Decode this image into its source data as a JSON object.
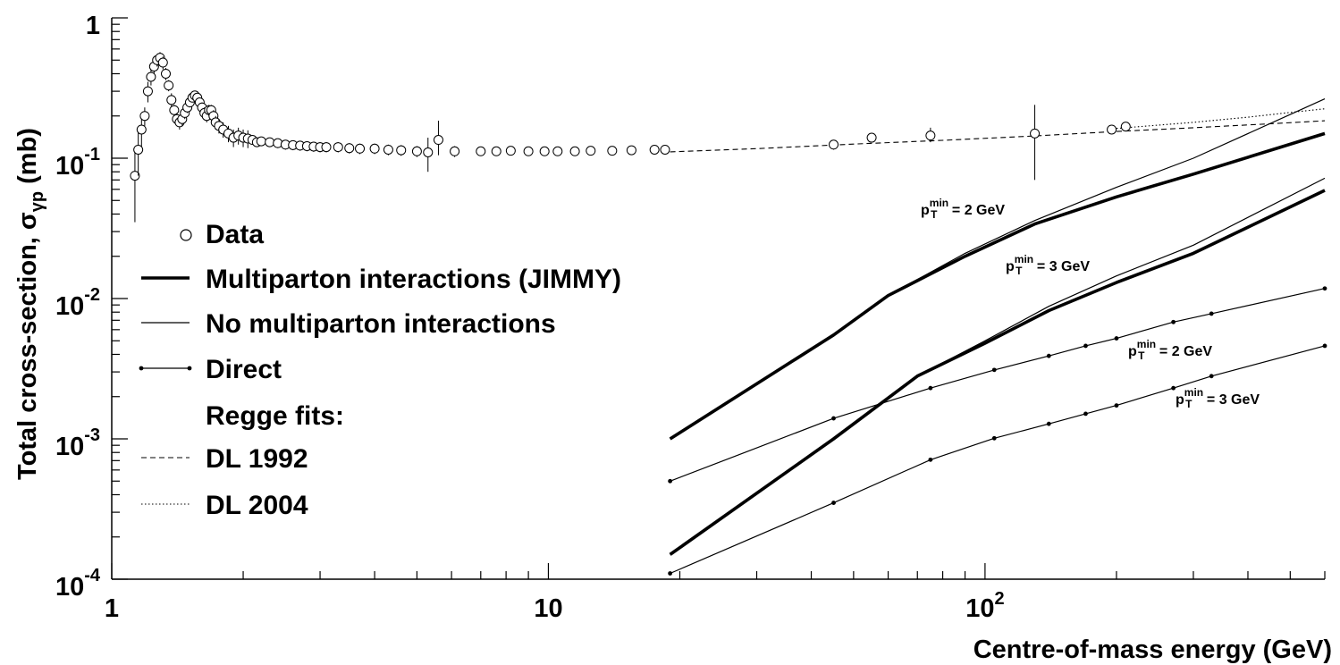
{
  "chart_data": {
    "type": "line",
    "title": "",
    "xlabel": "Centre-of-mass energy (GeV)",
    "ylabel_main": "Total cross-section, σ",
    "ylabel_sub": "γp",
    "ylabel_unit": " (mb)",
    "x_scale": "log",
    "y_scale": "log",
    "xlim": [
      1,
      600
    ],
    "ylim": [
      0.0001,
      1
    ],
    "grid": false,
    "legend_placement": "left",
    "x_ticks": [
      {
        "value": 1,
        "label": "1",
        "sup": ""
      },
      {
        "value": 10,
        "label": "10",
        "sup": ""
      },
      {
        "value": 100,
        "label": "10",
        "sup": "2"
      }
    ],
    "y_ticks": [
      {
        "value": 1,
        "label": "1",
        "sup": ""
      },
      {
        "value": 0.1,
        "label": "10",
        "sup": "-1"
      },
      {
        "value": 0.01,
        "label": "10",
        "sup": "-2"
      },
      {
        "value": 0.001,
        "label": "10",
        "sup": "-3"
      },
      {
        "value": 0.0001,
        "label": "10",
        "sup": "-4"
      }
    ],
    "legend": [
      {
        "key": "data",
        "label": "Data"
      },
      {
        "key": "mpi",
        "label": "Multiparton interactions (JIMMY)"
      },
      {
        "key": "nompi",
        "label": "No multiparton interactions"
      },
      {
        "key": "direct",
        "label": "Direct"
      },
      {
        "key": "header",
        "label": "Regge fits:"
      },
      {
        "key": "dl1992",
        "label": "DL 1992"
      },
      {
        "key": "dl2004",
        "label": "DL 2004"
      }
    ],
    "annotations": [
      {
        "base": "p",
        "sub": "T",
        "sup": "min",
        "rest": " = 2 GeV",
        "x": 20000,
        "y": 0.025
      },
      {
        "base": "p",
        "sub": "T",
        "sup": "min",
        "rest": " = 3 GeV",
        "x": 200000,
        "y": 0.0135
      },
      {
        "base": "p",
        "sub": "T",
        "sup": "min",
        "rest": " = 2 GeV",
        "x": 250000,
        "y": 0.0024
      },
      {
        "base": "p",
        "sub": "T",
        "sup": "min",
        "rest": " = 3 GeV",
        "x": 300000,
        "y": 0.0013
      }
    ],
    "series": [
      {
        "name": "Multiparton interactions (JIMMY)",
        "style": "thick",
        "label": "p_T^min = 2 GeV",
        "x": [
          19,
          45,
          60,
          90,
          130,
          200,
          300,
          600
        ],
        "y": [
          0.001,
          0.0055,
          0.0105,
          0.02,
          0.034,
          0.053,
          0.077,
          0.15
        ]
      },
      {
        "name": "No multiparton interactions",
        "style": "thin",
        "label": "p_T^min = 2 GeV",
        "x": [
          19,
          45,
          60,
          90,
          130,
          200,
          300,
          600
        ],
        "y": [
          0.001,
          0.0055,
          0.0105,
          0.021,
          0.036,
          0.062,
          0.1,
          0.265
        ]
      },
      {
        "name": "Multiparton interactions (JIMMY)",
        "style": "thick",
        "label": "p_T^min = 3 GeV",
        "x": [
          19,
          45,
          70,
          100,
          140,
          200,
          300,
          600
        ],
        "y": [
          0.00015,
          0.001,
          0.0028,
          0.0048,
          0.0082,
          0.013,
          0.021,
          0.059
        ]
      },
      {
        "name": "No multiparton interactions",
        "style": "thin",
        "label": "p_T^min = 3 GeV",
        "x": [
          19,
          45,
          70,
          100,
          140,
          200,
          300,
          600
        ],
        "y": [
          0.00015,
          0.001,
          0.0028,
          0.005,
          0.0088,
          0.0145,
          0.024,
          0.072
        ]
      },
      {
        "name": "Direct",
        "style": "direct",
        "label": "p_T^min = 2 GeV",
        "x": [
          19,
          45,
          75,
          105,
          140,
          170,
          200,
          270,
          330,
          600
        ],
        "y": [
          0.0005,
          0.0014,
          0.0023,
          0.0031,
          0.0039,
          0.0046,
          0.0052,
          0.0068,
          0.0078,
          0.0118
        ]
      },
      {
        "name": "Direct",
        "style": "direct",
        "label": "p_T^min = 3 GeV",
        "x": [
          19,
          45,
          75,
          105,
          140,
          170,
          200,
          270,
          330,
          600
        ],
        "y": [
          0.00011,
          0.00035,
          0.00071,
          0.00101,
          0.00128,
          0.00151,
          0.00173,
          0.0023,
          0.0028,
          0.0046
        ]
      },
      {
        "name": "DL 1992",
        "style": "dashed",
        "x": [
          19,
          30,
          50,
          80,
          130,
          200,
          300,
          450,
          600
        ],
        "y": [
          0.111,
          0.117,
          0.126,
          0.134,
          0.144,
          0.155,
          0.165,
          0.176,
          0.185
        ]
      },
      {
        "name": "DL 2004",
        "style": "dotted",
        "x": [
          200,
          300,
          400,
          500,
          600
        ],
        "y": [
          0.163,
          0.18,
          0.196,
          0.212,
          0.225
        ]
      }
    ],
    "data_points": {
      "name": "Data",
      "x": [
        1.13,
        1.15,
        1.17,
        1.19,
        1.21,
        1.23,
        1.25,
        1.27,
        1.29,
        1.31,
        1.33,
        1.35,
        1.37,
        1.39,
        1.41,
        1.43,
        1.45,
        1.47,
        1.49,
        1.51,
        1.53,
        1.55,
        1.57,
        1.59,
        1.61,
        1.63,
        1.65,
        1.67,
        1.69,
        1.71,
        1.73,
        1.76,
        1.8,
        1.85,
        1.9,
        1.95,
        2.0,
        2.05,
        2.1,
        2.15,
        2.2,
        2.3,
        2.4,
        2.5,
        2.6,
        2.7,
        2.8,
        2.9,
        3.0,
        3.1,
        3.3,
        3.5,
        3.7,
        4.0,
        4.3,
        4.6,
        5.0,
        5.3,
        5.6,
        6.1,
        7.0,
        7.6,
        8.2,
        9.0,
        9.8,
        10.5,
        11.5,
        12.5,
        14.0,
        15.5,
        17.5,
        18.5,
        45.0,
        55.0,
        75.0,
        130.0,
        195.0,
        210.0
      ],
      "y": [
        0.075,
        0.115,
        0.16,
        0.2,
        0.3,
        0.38,
        0.45,
        0.5,
        0.52,
        0.48,
        0.4,
        0.33,
        0.26,
        0.22,
        0.19,
        0.18,
        0.19,
        0.21,
        0.23,
        0.25,
        0.27,
        0.28,
        0.27,
        0.25,
        0.23,
        0.21,
        0.2,
        0.22,
        0.22,
        0.2,
        0.18,
        0.17,
        0.16,
        0.15,
        0.14,
        0.145,
        0.14,
        0.138,
        0.135,
        0.13,
        0.132,
        0.13,
        0.128,
        0.125,
        0.124,
        0.123,
        0.122,
        0.121,
        0.12,
        0.12,
        0.12,
        0.118,
        0.117,
        0.117,
        0.115,
        0.114,
        0.112,
        0.11,
        0.135,
        0.112,
        0.112,
        0.112,
        0.113,
        0.112,
        0.112,
        0.112,
        0.112,
        0.113,
        0.113,
        0.114,
        0.115,
        0.115,
        0.125,
        0.14,
        0.145,
        0.15,
        0.16,
        0.168
      ],
      "yerr_lo": [
        0.04,
        0.04,
        0.04,
        0.03,
        0.05,
        0.05,
        0.05,
        0.05,
        0.05,
        0.05,
        0.04,
        0.03,
        0.03,
        0.02,
        0.02,
        0.02,
        0.02,
        0.02,
        0.02,
        0.02,
        0.02,
        0.02,
        0.02,
        0.02,
        0.02,
        0.02,
        0.02,
        0.02,
        0.02,
        0.02,
        0.02,
        0.02,
        0.02,
        0.02,
        0.02,
        0.02,
        0.02,
        0.02,
        0.01,
        0.01,
        0.01,
        0.01,
        0.01,
        0.01,
        0.01,
        0.01,
        0.01,
        0.01,
        0.01,
        0.01,
        0.01,
        0.01,
        0.01,
        0.01,
        0.01,
        0.01,
        0.01,
        0.03,
        0.03,
        0.01,
        0.005,
        0.005,
        0.005,
        0.005,
        0.005,
        0.005,
        0.005,
        0.005,
        0.005,
        0.005,
        0.005,
        0.005,
        0.01,
        0.01,
        0.015,
        0.08,
        0.01,
        0.01
      ],
      "yerr_hi": [
        0.04,
        0.04,
        0.04,
        0.03,
        0.05,
        0.05,
        0.05,
        0.05,
        0.05,
        0.05,
        0.04,
        0.03,
        0.03,
        0.02,
        0.02,
        0.02,
        0.02,
        0.02,
        0.02,
        0.02,
        0.02,
        0.02,
        0.02,
        0.02,
        0.02,
        0.02,
        0.02,
        0.02,
        0.02,
        0.02,
        0.02,
        0.02,
        0.02,
        0.02,
        0.02,
        0.02,
        0.02,
        0.02,
        0.01,
        0.01,
        0.01,
        0.01,
        0.01,
        0.01,
        0.01,
        0.01,
        0.01,
        0.01,
        0.01,
        0.01,
        0.01,
        0.01,
        0.01,
        0.01,
        0.01,
        0.01,
        0.01,
        0.03,
        0.05,
        0.01,
        0.005,
        0.005,
        0.005,
        0.005,
        0.005,
        0.005,
        0.005,
        0.005,
        0.005,
        0.005,
        0.005,
        0.005,
        0.01,
        0.01,
        0.02,
        0.09,
        0.01,
        0.01
      ]
    }
  }
}
